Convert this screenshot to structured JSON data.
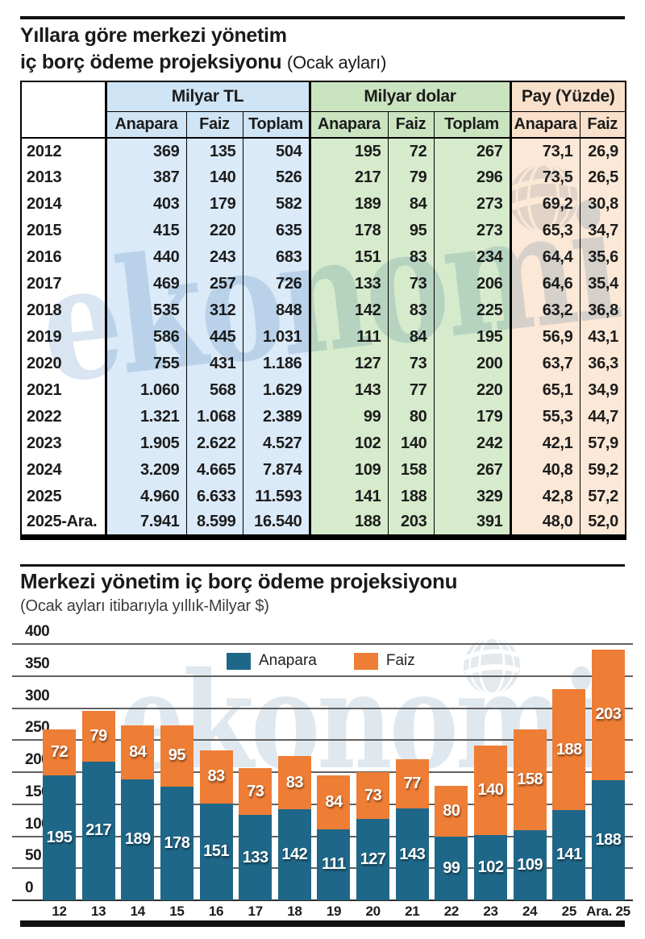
{
  "watermark": {
    "text": "ekonomi"
  },
  "panel1": {
    "title_line1": "Yıllara göre merkezi yönetim",
    "title_line2": "iç borç ödeme projeksiyonu",
    "title_suffix": "(Ocak ayları)"
  },
  "colors": {
    "anapara": "#1f6788",
    "faiz": "#ee7d35",
    "table_blue_header": "#cfe4f4",
    "table_green_header": "#cbe4c0",
    "table_peach_header": "#f9e0cb",
    "table_blue": "#dbeaf8",
    "table_green": "#d6ebcc",
    "table_peach": "#fce8d7",
    "watermark_blue": "#b9cfe3"
  },
  "chart_data": [
    {
      "type": "table",
      "title": "Yıllara göre merkezi yönetim iç borç ödeme projeksiyonu (Ocak ayları)",
      "column_groups": [
        "Milyar TL",
        "Milyar dolar",
        "Pay (Yüzde)"
      ],
      "columns": [
        "Anapara",
        "Faiz",
        "Toplam",
        "Anapara",
        "Faiz",
        "Toplam",
        "Anapara",
        "Faiz"
      ],
      "rows": [
        {
          "year": "2012",
          "cells": [
            "369",
            "135",
            "504",
            "195",
            "72",
            "267",
            "73,1",
            "26,9"
          ]
        },
        {
          "year": "2013",
          "cells": [
            "387",
            "140",
            "526",
            "217",
            "79",
            "296",
            "73,5",
            "26,5"
          ]
        },
        {
          "year": "2014",
          "cells": [
            "403",
            "179",
            "582",
            "189",
            "84",
            "273",
            "69,2",
            "30,8"
          ]
        },
        {
          "year": "2015",
          "cells": [
            "415",
            "220",
            "635",
            "178",
            "95",
            "273",
            "65,3",
            "34,7"
          ]
        },
        {
          "year": "2016",
          "cells": [
            "440",
            "243",
            "683",
            "151",
            "83",
            "234",
            "64,4",
            "35,6"
          ]
        },
        {
          "year": "2017",
          "cells": [
            "469",
            "257",
            "726",
            "133",
            "73",
            "206",
            "64,6",
            "35,4"
          ]
        },
        {
          "year": "2018",
          "cells": [
            "535",
            "312",
            "848",
            "142",
            "83",
            "225",
            "63,2",
            "36,8"
          ]
        },
        {
          "year": "2019",
          "cells": [
            "586",
            "445",
            "1.031",
            "111",
            "84",
            "195",
            "56,9",
            "43,1"
          ]
        },
        {
          "year": "2020",
          "cells": [
            "755",
            "431",
            "1.186",
            "127",
            "73",
            "200",
            "63,7",
            "36,3"
          ]
        },
        {
          "year": "2021",
          "cells": [
            "1.060",
            "568",
            "1.629",
            "143",
            "77",
            "220",
            "65,1",
            "34,9"
          ]
        },
        {
          "year": "2022",
          "cells": [
            "1.321",
            "1.068",
            "2.389",
            "99",
            "80",
            "179",
            "55,3",
            "44,7"
          ]
        },
        {
          "year": "2023",
          "cells": [
            "1.905",
            "2.622",
            "4.527",
            "102",
            "140",
            "242",
            "42,1",
            "57,9"
          ]
        },
        {
          "year": "2024",
          "cells": [
            "3.209",
            "4.665",
            "7.874",
            "109",
            "158",
            "267",
            "40,8",
            "59,2"
          ]
        },
        {
          "year": "2025",
          "cells": [
            "4.960",
            "6.633",
            "11.593",
            "141",
            "188",
            "329",
            "42,8",
            "57,2"
          ]
        },
        {
          "year": "2025-Ara.",
          "cells": [
            "7.941",
            "8.599",
            "16.540",
            "188",
            "203",
            "391",
            "48,0",
            "52,0"
          ]
        }
      ]
    },
    {
      "type": "bar",
      "stacked": true,
      "title": "Merkezi yönetim iç borç ödeme projeksiyonu",
      "subtitle": "(Ocak ayları itibarıyla yıllık-Milyar $)",
      "categories": [
        "12",
        "13",
        "14",
        "15",
        "16",
        "17",
        "18",
        "19",
        "20",
        "21",
        "22",
        "23",
        "24",
        "25",
        "Ara. 25"
      ],
      "series": [
        {
          "name": "Anapara",
          "values": [
            195,
            217,
            189,
            178,
            151,
            133,
            142,
            111,
            127,
            143,
            99,
            102,
            109,
            141,
            188
          ]
        },
        {
          "name": "Faiz",
          "values": [
            72,
            79,
            84,
            95,
            83,
            73,
            83,
            84,
            73,
            77,
            80,
            140,
            158,
            188,
            203
          ]
        }
      ],
      "ylim": [
        0,
        400
      ],
      "yticks": [
        0,
        50,
        100,
        150,
        200,
        250,
        300,
        350,
        400
      ],
      "grid": true,
      "legend_position": "top-center",
      "colors": {
        "Anapara": "#1f6788",
        "Faiz": "#ee7d35"
      }
    }
  ]
}
